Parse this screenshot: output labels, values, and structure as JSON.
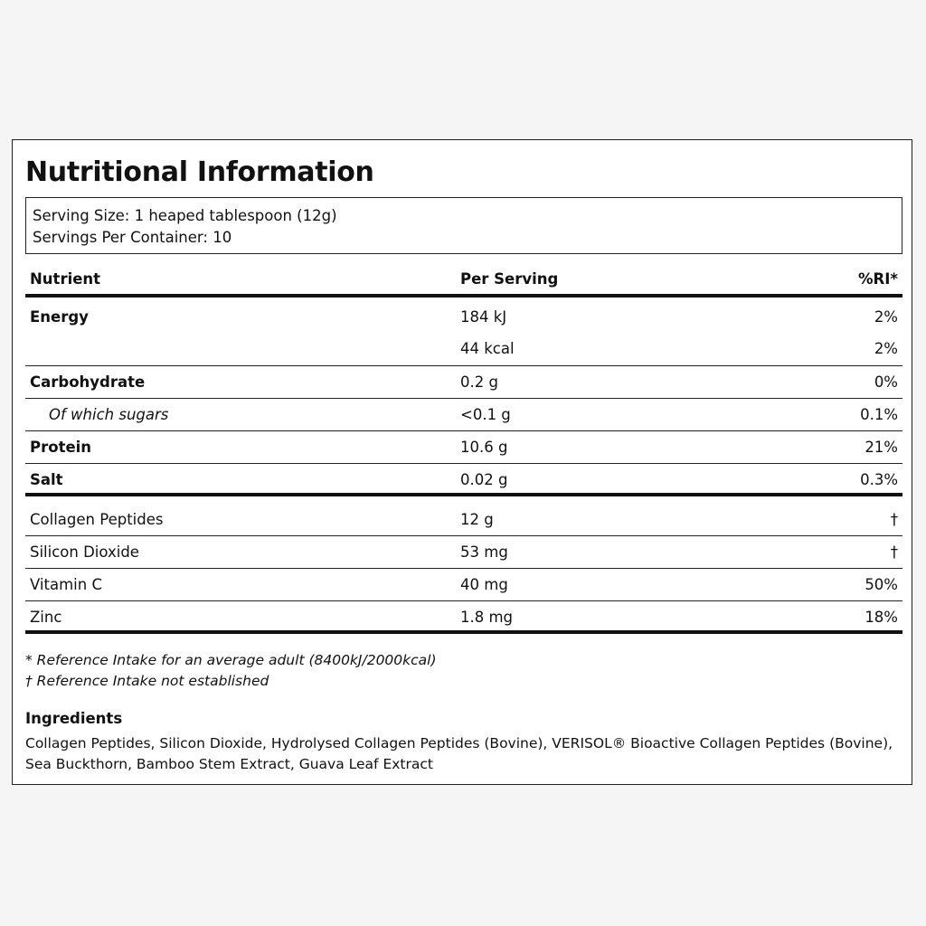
{
  "title": "Nutritional Information",
  "serving": {
    "size": "Serving Size: 1 heaped tablespoon (12g)",
    "per_container": "Servings Per Container: 10"
  },
  "table": {
    "headers": {
      "nutrient": "Nutrient",
      "per_serving": "Per Serving",
      "ri": "%RI*"
    },
    "rows": [
      {
        "name": "Energy",
        "per": "184 kJ",
        "ri": "2%"
      },
      {
        "name": "",
        "per": "44 kcal",
        "ri": "2%"
      },
      {
        "name": "Carbohydrate",
        "per": "0.2 g",
        "ri": "0%"
      },
      {
        "name": "Of which sugars",
        "per": "<0.1 g",
        "ri": "0.1%"
      },
      {
        "name": "Protein",
        "per": "10.6 g",
        "ri": "21%"
      },
      {
        "name": "Salt",
        "per": "0.02 g",
        "ri": "0.3%"
      },
      {
        "name": "Collagen Peptides",
        "per": "12 g",
        "ri": "†"
      },
      {
        "name": "Silicon Dioxide",
        "per": "53 mg",
        "ri": "†"
      },
      {
        "name": "Vitamin C",
        "per": "40 mg",
        "ri": "50%"
      },
      {
        "name": "Zinc",
        "per": "1.8 mg",
        "ri": "18%"
      }
    ]
  },
  "footnotes": [
    "* Reference Intake for an average adult (8400kJ/2000kcal)",
    "† Reference Intake not established"
  ],
  "ingredients": {
    "title": "Ingredients",
    "text": "Collagen Peptides, Silicon Dioxide, Hydrolysed Collagen Peptides (Bovine), VERISOL® Bioactive Collagen Peptides (Bovine), Sea Buckthorn, Bamboo Stem Extract, Guava Leaf Extract"
  }
}
